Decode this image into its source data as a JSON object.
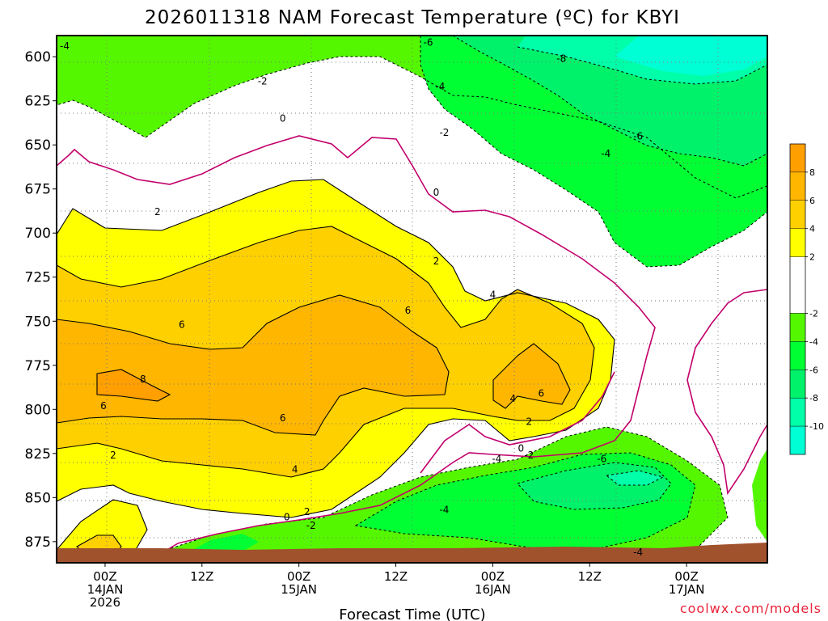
{
  "chart_data": {
    "type": "heatmap",
    "title": "2026011318 NAM Forecast Temperature (ºC) for KBYI",
    "xlabel": "Forecast Time (UTC)",
    "ylabel": "",
    "x_range_hours": [
      -6,
      82
    ],
    "y_range_hpa": [
      588,
      887
    ],
    "y_ticks": [
      {
        "value": 600,
        "label": "600"
      },
      {
        "value": 625,
        "label": "625"
      },
      {
        "value": 650,
        "label": "650"
      },
      {
        "value": 675,
        "label": "675"
      },
      {
        "value": 700,
        "label": "700"
      },
      {
        "value": 725,
        "label": "725"
      },
      {
        "value": 750,
        "label": "750"
      },
      {
        "value": 775,
        "label": "775"
      },
      {
        "value": 800,
        "label": "800"
      },
      {
        "value": 825,
        "label": "825"
      },
      {
        "value": 850,
        "label": "850"
      },
      {
        "value": 875,
        "label": "875"
      }
    ],
    "x_ticks": [
      {
        "hour": 0,
        "lines": [
          "00Z",
          "14JAN",
          "2026"
        ]
      },
      {
        "hour": 12,
        "lines": [
          "12Z"
        ]
      },
      {
        "hour": 24,
        "lines": [
          "00Z",
          "15JAN"
        ]
      },
      {
        "hour": 36,
        "lines": [
          "12Z"
        ]
      },
      {
        "hour": 48,
        "lines": [
          "00Z",
          "16JAN"
        ]
      },
      {
        "hour": 60,
        "lines": [
          "12Z"
        ]
      },
      {
        "hour": 72,
        "lines": [
          "00Z",
          "17JAN"
        ]
      }
    ],
    "colorbar": {
      "levels": [
        "8",
        "6",
        "4",
        "2",
        "-2",
        "-4",
        "-6",
        "-8",
        "-10"
      ],
      "bands": [
        {
          "min": 8,
          "max": 10,
          "color": "#ff9f00"
        },
        {
          "min": 6,
          "max": 8,
          "color": "#ffb600"
        },
        {
          "min": 4,
          "max": 6,
          "color": "#ffd000"
        },
        {
          "min": 2,
          "max": 4,
          "color": "#ffff00"
        },
        {
          "min": -2,
          "max": 2,
          "color": "#ffffff"
        },
        {
          "min": -4,
          "max": -2,
          "color": "#55f700"
        },
        {
          "min": -6,
          "max": -4,
          "color": "#00ff33"
        },
        {
          "min": -8,
          "max": -6,
          "color": "#00f26a"
        },
        {
          "min": -10,
          "max": -8,
          "color": "#00ffa8"
        },
        {
          "min": -12,
          "max": -10,
          "color": "#00ffd4"
        }
      ]
    },
    "contour_labels": [
      {
        "text": "-4",
        "hour": -5,
        "hpa": 594
      },
      {
        "text": "-6",
        "hour": 40,
        "hpa": 592
      },
      {
        "text": "-8",
        "hour": 56.5,
        "hpa": 601
      },
      {
        "text": "-2",
        "hour": 19.5,
        "hpa": 614
      },
      {
        "text": "-4",
        "hour": 41.5,
        "hpa": 617
      },
      {
        "text": "0",
        "hour": 22,
        "hpa": 635
      },
      {
        "text": "-2",
        "hour": 42,
        "hpa": 643
      },
      {
        "text": "-6",
        "hour": 66,
        "hpa": 645
      },
      {
        "text": "-4",
        "hour": 62,
        "hpa": 655
      },
      {
        "text": "0",
        "hour": 41,
        "hpa": 677
      },
      {
        "text": "2",
        "hour": 6.5,
        "hpa": 688
      },
      {
        "text": "2",
        "hour": 41,
        "hpa": 716
      },
      {
        "text": "4",
        "hour": 48,
        "hpa": 735
      },
      {
        "text": "6",
        "hour": 9.5,
        "hpa": 752
      },
      {
        "text": "6",
        "hour": 37.5,
        "hpa": 744
      },
      {
        "text": "8",
        "hour": 4.7,
        "hpa": 783
      },
      {
        "text": "6",
        "hour": -0.2,
        "hpa": 798
      },
      {
        "text": "6",
        "hour": 22,
        "hpa": 805
      },
      {
        "text": "4",
        "hour": 50.5,
        "hpa": 794
      },
      {
        "text": "6",
        "hour": 54,
        "hpa": 791
      },
      {
        "text": "2",
        "hour": 52.5,
        "hpa": 807
      },
      {
        "text": "0",
        "hour": 51.5,
        "hpa": 822
      },
      {
        "text": "2",
        "hour": 1,
        "hpa": 826
      },
      {
        "text": "4",
        "hour": 23.5,
        "hpa": 834
      },
      {
        "text": "-4",
        "hour": 48.5,
        "hpa": 828
      },
      {
        "text": "-2",
        "hour": 52.5,
        "hpa": 826
      },
      {
        "text": "-6",
        "hour": 61.5,
        "hpa": 828
      },
      {
        "text": "-4",
        "hour": 42,
        "hpa": 857
      },
      {
        "text": "0",
        "hour": 22.5,
        "hpa": 861
      },
      {
        "text": "2",
        "hour": 25,
        "hpa": 858
      },
      {
        "text": "-2",
        "hour": 25.5,
        "hpa": 866
      },
      {
        "text": "-4",
        "hour": 66,
        "hpa": 881
      }
    ],
    "terrain_color": "#a0522d",
    "zero_line_color": "#c2006b"
  },
  "credit": "coolwx.com/models"
}
